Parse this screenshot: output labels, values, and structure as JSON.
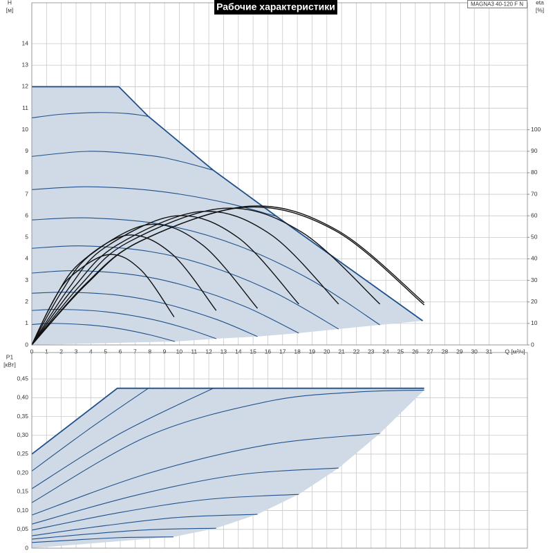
{
  "chart_data": [
    {
      "type": "line",
      "title": "Рабочие характеристики",
      "model": "MAGNA3 40-120 F N",
      "x_label": "Q [м³/ч]",
      "y_label": "H",
      "y_unit": "[м]",
      "y2_label": "eta",
      "y2_unit": "[%]",
      "xlim": [
        0,
        33.6
      ],
      "xticks": [
        0,
        1,
        2,
        3,
        4,
        5,
        6,
        7,
        8,
        9,
        10,
        11,
        12,
        13,
        14,
        15,
        16,
        17,
        18,
        19,
        20,
        21,
        22,
        23,
        24,
        25,
        26,
        27,
        28,
        29,
        30,
        31
      ],
      "xtick_labels": true,
      "ylim": [
        0,
        15.9
      ],
      "yticks": [
        0,
        1,
        2,
        3,
        4,
        5,
        6,
        7,
        8,
        9,
        10,
        11,
        12,
        13,
        14
      ],
      "y2lim": [
        0,
        159
      ],
      "y2ticks": [
        0,
        10,
        20,
        30,
        40,
        50,
        60,
        70,
        80,
        90,
        100
      ],
      "grid": true,
      "area_color": "#cfdae6",
      "area_lower": {
        "x": [
          0,
          9.7,
          12.5,
          15.3,
          18.1,
          20.8,
          23.6,
          26.5
        ],
        "values": [
          0,
          0.16,
          0.29,
          0.39,
          0.55,
          0.74,
          0.93,
          1.12
        ]
      },
      "series": [
        {
          "color": "#1f4f8a",
          "smooth": false,
          "x": [
            0,
            5.9,
            7.9,
            12.3,
            16.6,
            26.5
          ],
          "values": [
            12,
            12,
            10.62,
            8.12,
            5.97,
            1.12
          ]
        },
        {
          "color": "#1f4f8a",
          "smooth": true,
          "x": [
            0,
            2,
            4.5,
            6.5,
            7.9
          ],
          "values": [
            10.55,
            10.72,
            10.8,
            10.75,
            10.62
          ]
        },
        {
          "color": "#1f4f8a",
          "smooth": true,
          "x": [
            0,
            4,
            8,
            10,
            12.3
          ],
          "values": [
            8.76,
            9,
            8.8,
            8.54,
            8.12
          ]
        },
        {
          "color": "#1f4f8a",
          "smooth": true,
          "x": [
            0,
            3.5,
            7,
            10,
            13.5,
            16.6
          ],
          "values": [
            7.22,
            7.35,
            7.25,
            7.01,
            6.55,
            5.97
          ]
        },
        {
          "color": "#1f4f8a",
          "smooth": true,
          "x": [
            0,
            4,
            9,
            14,
            19,
            23.6
          ],
          "values": [
            5.81,
            5.9,
            5.58,
            4.61,
            2.99,
            0.93
          ]
        },
        {
          "color": "#1f4f8a",
          "smooth": true,
          "x": [
            0,
            3.5,
            8,
            12,
            16.5,
            20.8
          ],
          "values": [
            4.49,
            4.6,
            4.34,
            3.67,
            2.42,
            0.74
          ]
        },
        {
          "color": "#1f4f8a",
          "smooth": true,
          "x": [
            0,
            3,
            7,
            10.5,
            14.5,
            18.1
          ],
          "values": [
            3.34,
            3.45,
            3.25,
            2.73,
            1.77,
            0.55
          ]
        },
        {
          "color": "#1f4f8a",
          "smooth": true,
          "x": [
            0,
            2.5,
            6,
            9,
            12.5,
            15.3
          ],
          "values": [
            2.4,
            2.45,
            2.3,
            1.92,
            1.19,
            0.39
          ]
        },
        {
          "color": "#1f4f8a",
          "smooth": true,
          "x": [
            0,
            2,
            5,
            8,
            10.5,
            12.5
          ],
          "values": [
            1.6,
            1.65,
            1.54,
            1.21,
            0.76,
            0.29
          ]
        },
        {
          "color": "#1f4f8a",
          "smooth": true,
          "x": [
            0,
            1.5,
            4,
            6,
            8,
            9.7
          ],
          "values": [
            0.95,
            1,
            0.92,
            0.75,
            0.47,
            0.16
          ]
        },
        {
          "color": "#111111",
          "smooth": true,
          "axis": "y2",
          "x": [
            0,
            1.3,
            2.6,
            5.2,
            7.4,
            9.65
          ],
          "values": [
            0,
            18.4,
            31.5,
            42,
            34.8,
            13
          ]
        },
        {
          "color": "#111111",
          "smooth": true,
          "axis": "y2",
          "x": [
            0,
            1.6,
            3.3,
            6.5,
            9.5,
            12.5
          ],
          "values": [
            0,
            22.3,
            38.3,
            51,
            42.3,
            16
          ]
        },
        {
          "color": "#111111",
          "smooth": true,
          "axis": "y2",
          "x": [
            0,
            2,
            4,
            8,
            11.6,
            15.3
          ],
          "values": [
            0,
            24.5,
            42,
            56,
            46.3,
            17
          ]
        },
        {
          "color": "#111111",
          "smooth": true,
          "axis": "y2",
          "x": [
            0,
            2.5,
            4.9,
            9.8,
            14,
            18.1
          ],
          "values": [
            0,
            26.3,
            45,
            60,
            49.8,
            19
          ]
        },
        {
          "color": "#111111",
          "smooth": true,
          "axis": "y2",
          "x": [
            0,
            2.9,
            5.8,
            11.5,
            16.2,
            20.8
          ],
          "values": [
            0,
            27.1,
            46.5,
            62,
            51.3,
            19
          ]
        },
        {
          "color": "#111111",
          "smooth": true,
          "axis": "y2",
          "x": [
            0,
            3.3,
            6.5,
            13,
            18.3,
            23.6
          ],
          "values": [
            0,
            27.8,
            47.6,
            63.5,
            52.4,
            19
          ]
        },
        {
          "color": "#111111",
          "smooth": true,
          "axis": "y2",
          "x": [
            0,
            3.7,
            7.4,
            14.8,
            20.7,
            26.6
          ],
          "values": [
            0,
            28.2,
            48.4,
            64.5,
            53.3,
            19.6
          ]
        },
        {
          "color": "#111111",
          "smooth": true,
          "axis": "y2",
          "x": [
            0,
            3.6,
            7.3,
            14.5,
            20.6,
            26.6
          ],
          "values": [
            0,
            28,
            48,
            64,
            53,
            18.6
          ]
        }
      ]
    },
    {
      "type": "line",
      "y_label": "P1",
      "y_unit": "[кВт]",
      "xlim": [
        0,
        33.6
      ],
      "xticks": [
        0,
        1,
        2,
        3,
        4,
        5,
        6,
        7,
        8,
        9,
        10,
        11,
        12,
        13,
        14,
        15,
        16,
        17,
        18,
        19,
        20,
        21,
        22,
        23,
        24,
        25,
        26,
        27,
        28,
        29,
        30,
        31
      ],
      "xtick_labels": false,
      "ylim": [
        0,
        0.52
      ],
      "yticks": [
        0,
        {
          "value": 0.05,
          "label": "0,05"
        },
        {
          "value": 0.1,
          "label": "0,10"
        },
        {
          "value": 0.15,
          "label": "0,15"
        },
        {
          "value": 0.2,
          "label": "0,20"
        },
        {
          "value": 0.25,
          "label": "0,25"
        },
        {
          "value": 0.3,
          "label": "0,30"
        },
        {
          "value": 0.35,
          "label": "0,35"
        },
        {
          "value": 0.4,
          "label": "0,40"
        },
        {
          "value": 0.45,
          "label": "0,45"
        }
      ],
      "grid": true,
      "area_color": "#cfdae6",
      "area_lower": {
        "x": [
          0,
          9.6,
          12.5,
          15.3,
          18.1,
          20.8,
          23.6,
          26.6
        ],
        "values": [
          0,
          0.03,
          0.053,
          0.09,
          0.143,
          0.213,
          0.305,
          0.42
        ]
      },
      "series": [
        {
          "color": "#1f4f8a",
          "smooth": false,
          "x": [
            0,
            5.8,
            26.6
          ],
          "values": [
            0.25,
            0.425,
            0.425
          ]
        },
        {
          "color": "#1f4f8a",
          "smooth": true,
          "x": [
            0,
            4,
            7.9
          ],
          "values": [
            0.205,
            0.32,
            0.425
          ]
        },
        {
          "color": "#1f4f8a",
          "smooth": true,
          "x": [
            0,
            6,
            12.3
          ],
          "values": [
            0.158,
            0.305,
            0.425
          ]
        },
        {
          "color": "#1f4f8a",
          "smooth": true,
          "x": [
            0,
            8,
            16,
            22,
            26.6
          ],
          "values": [
            0.121,
            0.3,
            0.39,
            0.415,
            0.42
          ]
        },
        {
          "color": "#1f4f8a",
          "smooth": true,
          "x": [
            0,
            8,
            16,
            23.6
          ],
          "values": [
            0.088,
            0.2,
            0.275,
            0.305
          ]
        },
        {
          "color": "#1f4f8a",
          "smooth": true,
          "x": [
            0,
            7,
            14,
            20.8
          ],
          "values": [
            0.064,
            0.14,
            0.195,
            0.213
          ]
        },
        {
          "color": "#1f4f8a",
          "smooth": true,
          "x": [
            0,
            6,
            12,
            18.1
          ],
          "values": [
            0.048,
            0.095,
            0.13,
            0.143
          ]
        },
        {
          "color": "#1f4f8a",
          "smooth": true,
          "x": [
            0,
            5,
            10,
            15.3
          ],
          "values": [
            0.033,
            0.06,
            0.082,
            0.09
          ]
        },
        {
          "color": "#1f4f8a",
          "smooth": true,
          "x": [
            0,
            4,
            8,
            12.5
          ],
          "values": [
            0.024,
            0.038,
            0.049,
            0.053
          ]
        },
        {
          "color": "#1f4f8a",
          "smooth": true,
          "x": [
            0,
            3,
            6,
            9.6
          ],
          "values": [
            0.015,
            0.022,
            0.028,
            0.03
          ]
        }
      ]
    }
  ]
}
